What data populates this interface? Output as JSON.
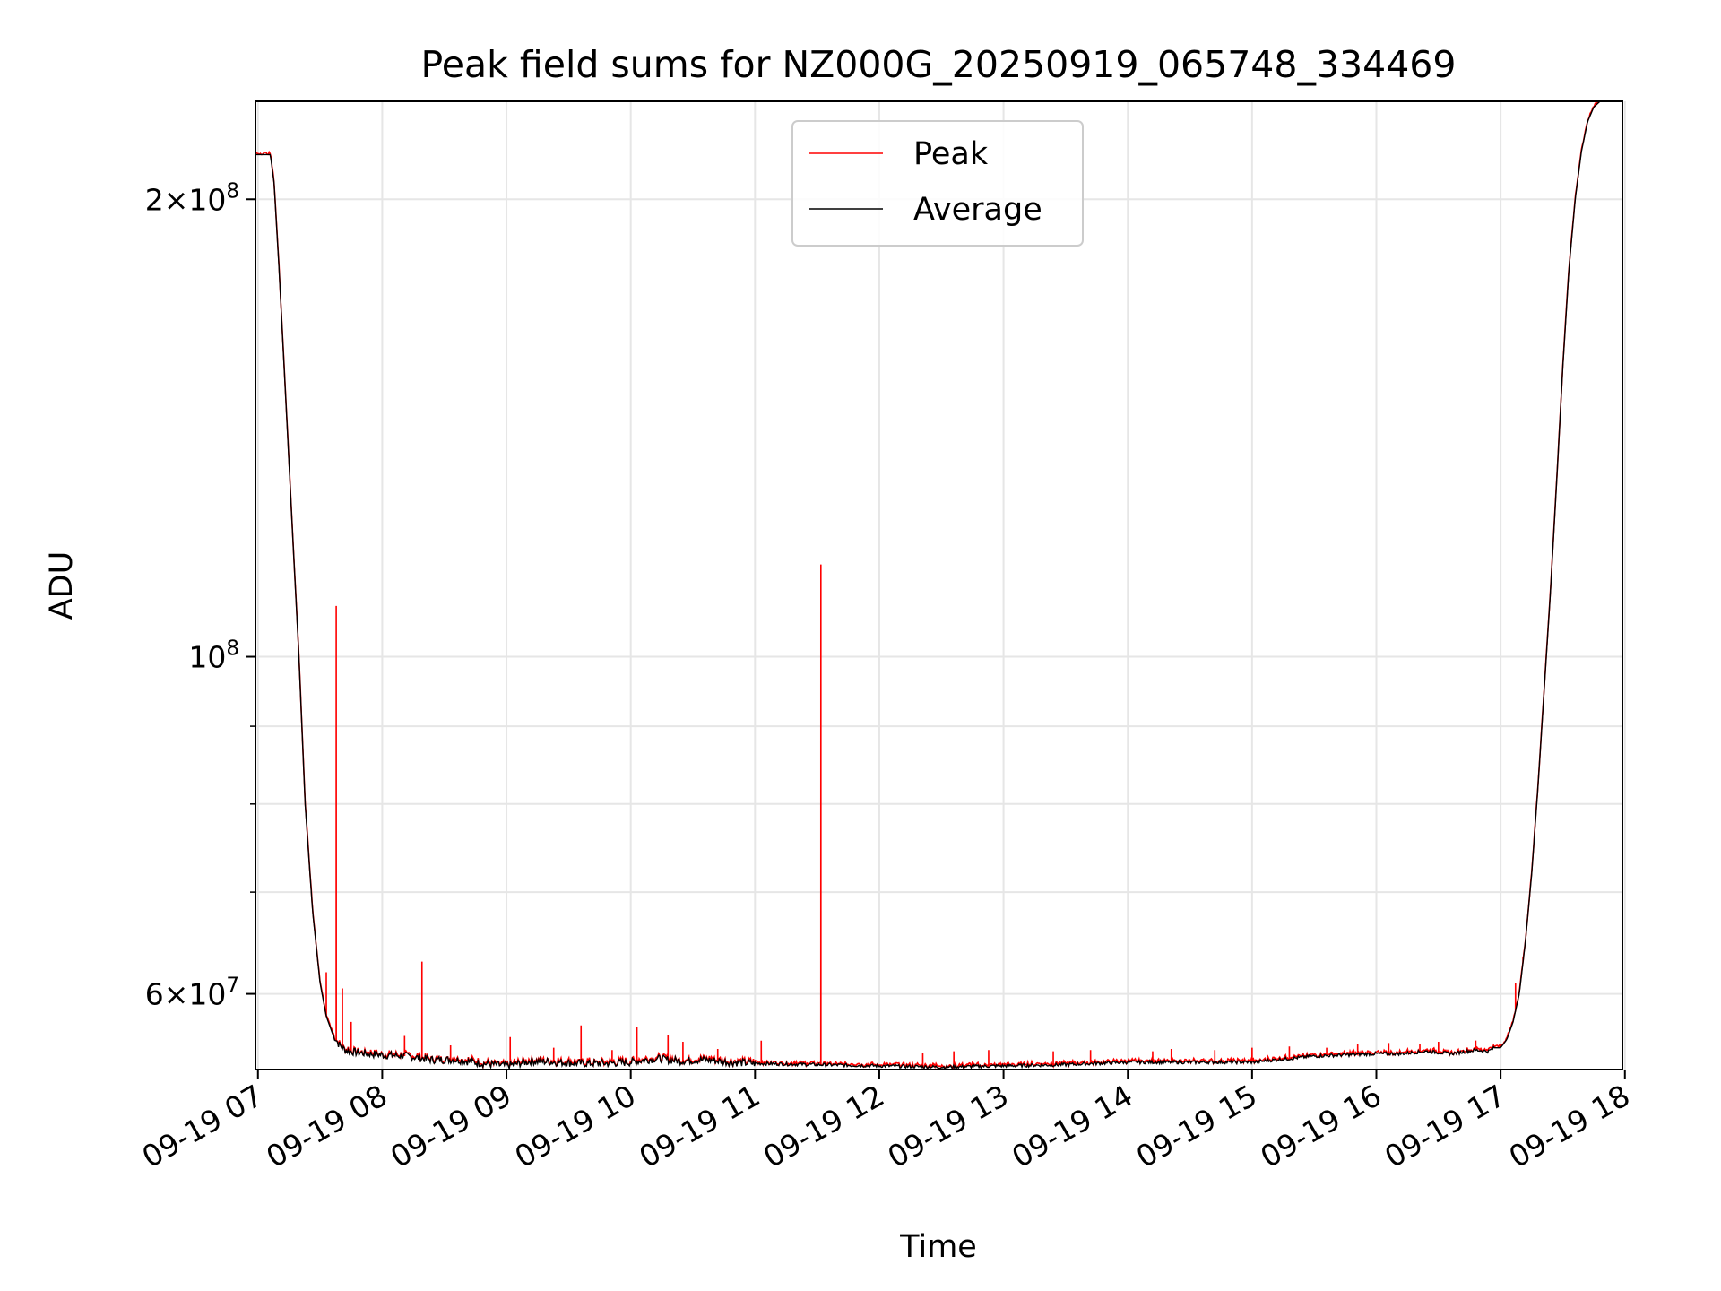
{
  "chart_data": {
    "type": "line",
    "title": "Peak field sums for NZ000G_20250919_065748_334469",
    "xlabel": "Time",
    "ylabel": "ADU",
    "yscale": "log",
    "xlim": [
      6.98,
      17.98
    ],
    "ylim": [
      53500000,
      232000000
    ],
    "grid": true,
    "legend": {
      "position": "top-center",
      "entries": [
        "Peak",
        "Average"
      ]
    },
    "x_ticks": [
      {
        "value": 7,
        "label": "09-19 07"
      },
      {
        "value": 8,
        "label": "09-19 08"
      },
      {
        "value": 9,
        "label": "09-19 09"
      },
      {
        "value": 10,
        "label": "09-19 10"
      },
      {
        "value": 11,
        "label": "09-19 11"
      },
      {
        "value": 12,
        "label": "09-19 12"
      },
      {
        "value": 13,
        "label": "09-19 13"
      },
      {
        "value": 14,
        "label": "09-19 14"
      },
      {
        "value": 15,
        "label": "09-19 15"
      },
      {
        "value": 16,
        "label": "09-19 16"
      },
      {
        "value": 17,
        "label": "09-19 17"
      },
      {
        "value": 18,
        "label": "09-19 18"
      }
    ],
    "y_ticks_major": [
      {
        "value": 60000000,
        "mant": "6",
        "exp": "7"
      },
      {
        "value": 100000000,
        "mant": "",
        "exp": "8"
      },
      {
        "value": 200000000,
        "mant": "2",
        "exp": "8"
      }
    ],
    "y_ticks_minor": [
      70000000,
      80000000,
      90000000
    ],
    "series": [
      {
        "name": "Average",
        "color": "#000000",
        "x": [
          6.98,
          7.1,
          7.13,
          7.17,
          7.22,
          7.28,
          7.33,
          7.38,
          7.44,
          7.5,
          7.55,
          7.6,
          7.65,
          7.7,
          7.8,
          7.9,
          8.0,
          8.2,
          8.4,
          8.6,
          8.8,
          9.0,
          9.2,
          9.4,
          9.6,
          9.8,
          10.0,
          10.2,
          10.4,
          10.6,
          10.8,
          11.0,
          11.5,
          12.0,
          12.5,
          13.0,
          13.5,
          14.0,
          14.5,
          15.0,
          15.5,
          16.0,
          16.2,
          16.4,
          16.6,
          16.8,
          16.9,
          16.95,
          17.0,
          17.05,
          17.1,
          17.15,
          17.2,
          17.25,
          17.3,
          17.35,
          17.4,
          17.45,
          17.5,
          17.55,
          17.6,
          17.65,
          17.7,
          17.75,
          17.8,
          17.85,
          17.98
        ],
        "y": [
          214000000,
          214000000,
          205000000,
          180000000,
          150000000,
          120000000,
          100000000,
          80000000,
          68000000,
          61000000,
          58000000,
          56500000,
          55600000,
          55100000,
          54900000,
          54800000,
          54700000,
          54600000,
          54300000,
          54300000,
          54000000,
          53800000,
          54200000,
          54100000,
          54000000,
          54000000,
          54100000,
          54400000,
          54200000,
          54300000,
          54100000,
          54000000,
          53900000,
          53800000,
          53700000,
          53800000,
          53900000,
          54100000,
          54100000,
          54100000,
          54600000,
          54800000,
          54800000,
          55000000,
          54800000,
          55100000,
          55000000,
          55300000,
          55300000,
          56000000,
          57500000,
          60000000,
          65000000,
          72000000,
          82000000,
          95000000,
          110000000,
          130000000,
          155000000,
          180000000,
          200000000,
          215000000,
          225000000,
          230000000,
          232000000,
          232000000,
          232000000
        ]
      },
      {
        "name": "Peak",
        "color": "#ff0000",
        "spikes": [
          {
            "x": 7.63,
            "y": 108000000
          },
          {
            "x": 7.55,
            "y": 62000000
          },
          {
            "x": 7.68,
            "y": 60500000
          },
          {
            "x": 7.75,
            "y": 57500000
          },
          {
            "x": 8.32,
            "y": 63000000
          },
          {
            "x": 8.18,
            "y": 56300000
          },
          {
            "x": 8.55,
            "y": 55500000
          },
          {
            "x": 9.03,
            "y": 56200000
          },
          {
            "x": 9.38,
            "y": 55300000
          },
          {
            "x": 9.6,
            "y": 57200000
          },
          {
            "x": 9.85,
            "y": 55100000
          },
          {
            "x": 10.05,
            "y": 57100000
          },
          {
            "x": 10.3,
            "y": 56400000
          },
          {
            "x": 10.42,
            "y": 55800000
          },
          {
            "x": 10.7,
            "y": 55200000
          },
          {
            "x": 11.05,
            "y": 55900000
          },
          {
            "x": 11.53,
            "y": 115000000
          },
          {
            "x": 12.35,
            "y": 54900000
          },
          {
            "x": 12.6,
            "y": 55000000
          },
          {
            "x": 12.88,
            "y": 55100000
          },
          {
            "x": 13.4,
            "y": 55000000
          },
          {
            "x": 13.7,
            "y": 55100000
          },
          {
            "x": 14.2,
            "y": 55000000
          },
          {
            "x": 14.35,
            "y": 55200000
          },
          {
            "x": 14.7,
            "y": 55100000
          },
          {
            "x": 15.0,
            "y": 55300000
          },
          {
            "x": 15.3,
            "y": 55400000
          },
          {
            "x": 15.6,
            "y": 55300000
          },
          {
            "x": 15.85,
            "y": 55600000
          },
          {
            "x": 16.1,
            "y": 55700000
          },
          {
            "x": 16.35,
            "y": 55600000
          },
          {
            "x": 16.5,
            "y": 55800000
          },
          {
            "x": 16.8,
            "y": 55900000
          },
          {
            "x": 17.12,
            "y": 61000000
          },
          {
            "x": 17.18,
            "y": 63500000
          }
        ]
      }
    ]
  }
}
